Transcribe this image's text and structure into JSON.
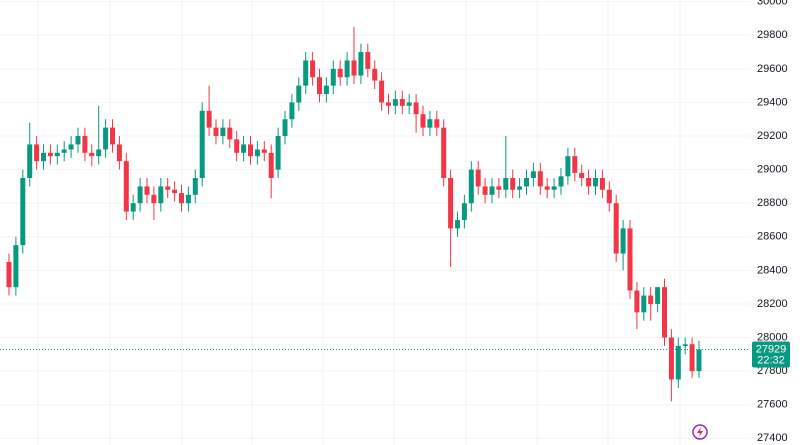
{
  "chart_data": {
    "type": "candlestick",
    "open": [
      28450,
      28300,
      28550,
      28950,
      29150,
      29050,
      29100,
      29080,
      29100,
      29120,
      29150,
      29200,
      29100,
      29080,
      29120,
      29250,
      29150,
      29050,
      28750,
      28800,
      28900,
      28850,
      28800,
      28900,
      28880,
      28860,
      28800,
      28850,
      28950,
      29350,
      29250,
      29200,
      29250,
      29180,
      29100,
      29150,
      29080,
      29120,
      29100,
      29000,
      29200,
      29300,
      29400,
      29500,
      29650,
      29550,
      29450,
      29500,
      29600,
      29550,
      29650,
      29560,
      29700,
      29600,
      29530,
      29400,
      29380,
      29420,
      29380,
      29400,
      29330,
      29250,
      29300,
      29250,
      28950,
      28650,
      28700,
      28800,
      29000,
      28900,
      28850,
      28900,
      28880,
      28950,
      28880,
      28900,
      28950,
      28990,
      28900,
      28880,
      28900,
      28960,
      29080,
      28980,
      28950,
      28900,
      28950,
      28880,
      28800,
      28500,
      28650,
      28280,
      28150,
      28250,
      28200,
      28300,
      28000,
      27750,
      27950,
      27960,
      27800
    ],
    "high": [
      28500,
      28600,
      29000,
      29280,
      29200,
      29150,
      29150,
      29150,
      29170,
      29200,
      29250,
      29250,
      29150,
      29380,
      29300,
      29300,
      29200,
      29100,
      28850,
      28950,
      28950,
      28900,
      28950,
      28950,
      28930,
      28910,
      28900,
      29000,
      29400,
      29500,
      29300,
      29300,
      29300,
      29230,
      29200,
      29200,
      29170,
      29170,
      29150,
      29250,
      29350,
      29450,
      29550,
      29700,
      29700,
      29600,
      29550,
      29650,
      29650,
      29700,
      29850,
      29750,
      29750,
      29650,
      29580,
      29450,
      29470,
      29470,
      29450,
      29450,
      29380,
      29350,
      29350,
      29300,
      29000,
      28750,
      28850,
      29050,
      29050,
      28950,
      28950,
      28950,
      29200,
      29000,
      28950,
      29000,
      29040,
      29040,
      28950,
      28950,
      29010,
      29130,
      29130,
      29030,
      29000,
      29000,
      29000,
      28930,
      28850,
      28700,
      28700,
      28330,
      28300,
      28300,
      28300,
      28350,
      28050,
      28000,
      28000,
      28000,
      27980
    ],
    "low": [
      28250,
      28250,
      28500,
      28900,
      29000,
      29000,
      29030,
      29030,
      29050,
      29070,
      29100,
      29050,
      29020,
      29030,
      29070,
      29100,
      29000,
      28700,
      28700,
      28750,
      28800,
      28700,
      28750,
      28830,
      28810,
      28750,
      28750,
      28800,
      28900,
      29200,
      29150,
      29150,
      29130,
      29050,
      29050,
      29030,
      29030,
      29050,
      28830,
      28950,
      29150,
      29250,
      29350,
      29450,
      29500,
      29400,
      29400,
      29450,
      29500,
      29500,
      29510,
      29510,
      29550,
      29480,
      29350,
      29330,
      29330,
      29330,
      29330,
      29220,
      29200,
      29200,
      29200,
      28900,
      28420,
      28600,
      28650,
      28750,
      28850,
      28800,
      28800,
      28830,
      28830,
      28830,
      28830,
      28850,
      28900,
      28850,
      28830,
      28830,
      28850,
      28910,
      28930,
      28900,
      28850,
      28850,
      28830,
      28750,
      28450,
      28400,
      28230,
      28050,
      28100,
      28100,
      28150,
      27950,
      27620,
      27700,
      27900,
      27760,
      27760
    ],
    "close": [
      28300,
      28550,
      28950,
      29150,
      29050,
      29100,
      29080,
      29100,
      29120,
      29150,
      29200,
      29100,
      29080,
      29120,
      29250,
      29150,
      29050,
      28750,
      28800,
      28900,
      28850,
      28800,
      28900,
      28880,
      28860,
      28800,
      28850,
      28950,
      29350,
      29250,
      29200,
      29250,
      29180,
      29100,
      29150,
      29080,
      29120,
      29100,
      28950,
      29200,
      29300,
      29400,
      29500,
      29650,
      29550,
      29450,
      29500,
      29600,
      29550,
      29650,
      29560,
      29700,
      29600,
      29530,
      29400,
      29380,
      29420,
      29380,
      29400,
      29330,
      29250,
      29300,
      29250,
      28950,
      28650,
      28700,
      28800,
      29000,
      28900,
      28850,
      28900,
      28880,
      28950,
      28880,
      28900,
      28950,
      28990,
      28900,
      28880,
      28900,
      28960,
      29080,
      28980,
      28950,
      28900,
      28950,
      28880,
      28800,
      28500,
      28650,
      28280,
      28150,
      28250,
      28200,
      28300,
      28000,
      27750,
      27950,
      27960,
      27800,
      27929
    ],
    "up_color": "#089981",
    "down_color": "#f23645",
    "ylim": [
      27360,
      30010
    ],
    "yticks": [
      27400,
      27600,
      27800,
      28000,
      28200,
      28400,
      28600,
      28800,
      29000,
      29200,
      29400,
      29600,
      29800,
      30000
    ],
    "grid": true,
    "last_price": 27929,
    "countdown": "22:32"
  }
}
